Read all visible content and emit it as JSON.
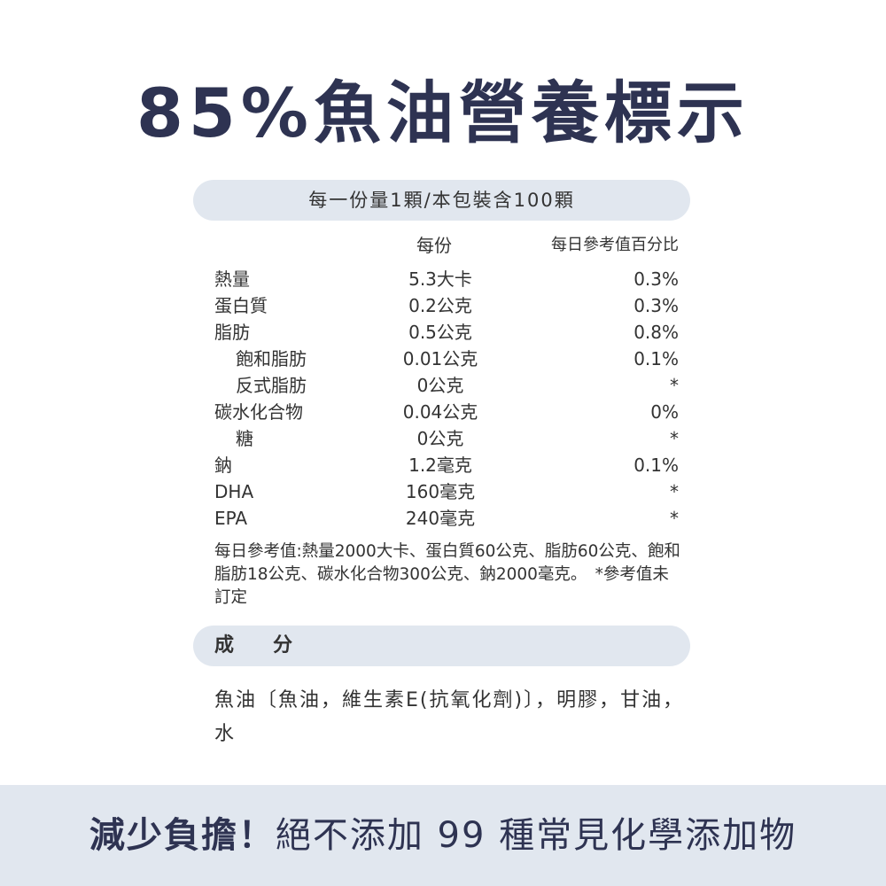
{
  "title": "85%魚油營養標示",
  "serving": "每一份量1顆/本包裝含100顆",
  "headers": {
    "per_serving": "每份",
    "daily_pct": "每日參考值百分比"
  },
  "rows": [
    {
      "label": "熱量",
      "amount": "5.3大卡",
      "pct": "0.3%"
    },
    {
      "label": "蛋白質",
      "amount": "0.2公克",
      "pct": "0.3%"
    },
    {
      "label": "脂肪",
      "amount": "0.5公克",
      "pct": "0.8%"
    },
    {
      "label": "飽和脂肪",
      "amount": "0.01公克",
      "pct": "0.1%"
    },
    {
      "label": "反式脂肪",
      "amount": "0公克",
      "pct": "*"
    },
    {
      "label": "碳水化合物",
      "amount": "0.04公克",
      "pct": "0%"
    },
    {
      "label": "糖",
      "amount": "0公克",
      "pct": "*"
    },
    {
      "label": "鈉",
      "amount": "1.2毫克",
      "pct": "0.1%"
    },
    {
      "label": "DHA",
      "amount": "160毫克",
      "pct": "*"
    },
    {
      "label": "EPA",
      "amount": "240毫克",
      "pct": "*"
    }
  ],
  "note": "每日參考值:熱量2000大卡、蛋白質60公克、脂肪60公克、飽和脂肪18公克、碳水化合物300公克、鈉2000毫克。　*參考值未訂定",
  "ingredients_label": "成　　分",
  "ingredients": "魚油〔魚油，維生素E(抗氧化劑)〕，明膠，甘油，水",
  "banner": {
    "bold": "減少負擔！",
    "text": "絕不添加 99 種常見化學添加物"
  }
}
